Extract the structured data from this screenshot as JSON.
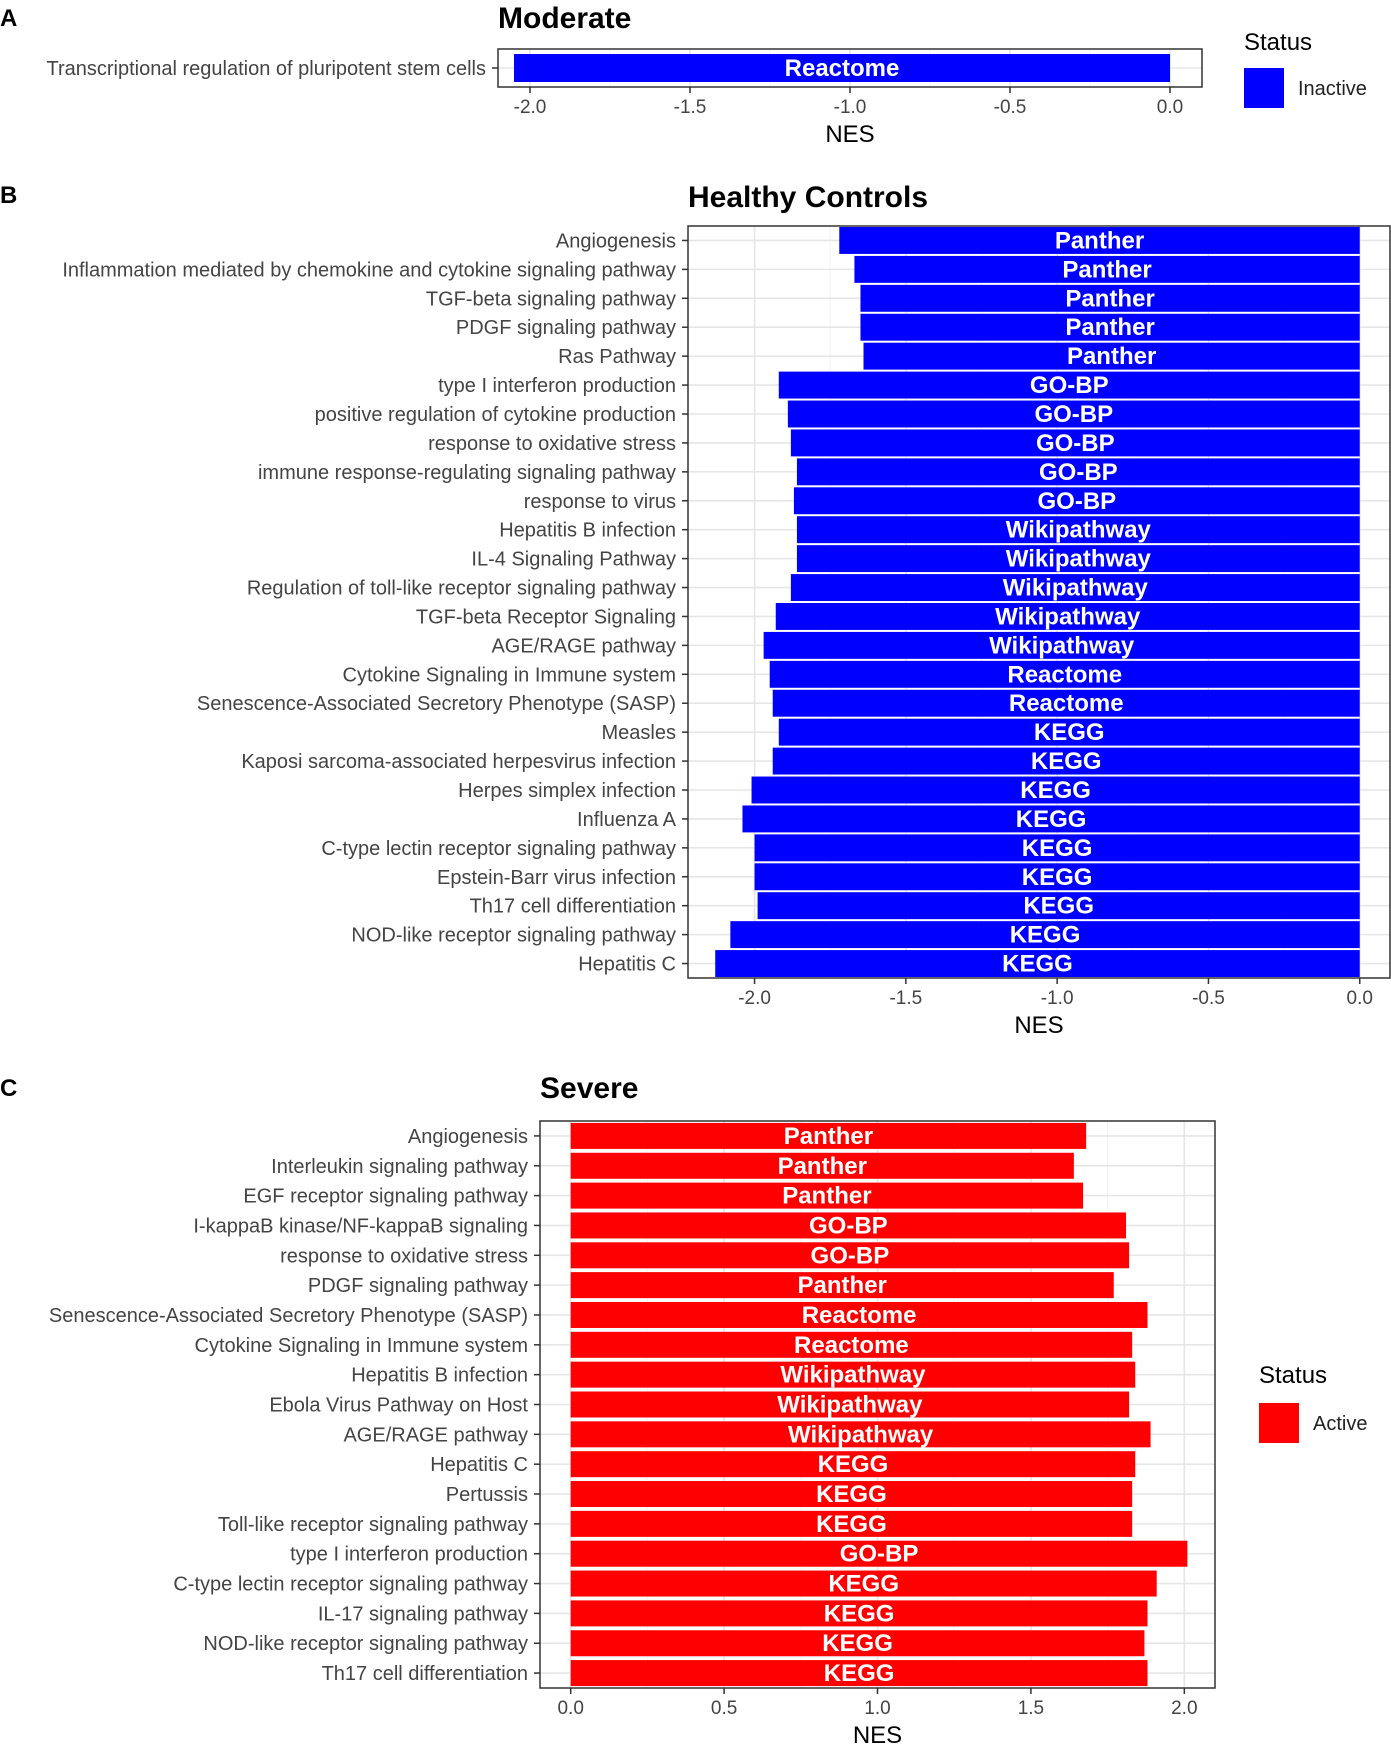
{
  "chart_data": [
    {
      "panel": "A",
      "type": "bar",
      "orientation": "horizontal",
      "title": "Moderate",
      "xlabel": "NES",
      "ylabel": "",
      "xlim": [
        -2.1,
        0.1
      ],
      "xticks": [
        -2.0,
        -1.5,
        -1.0,
        -0.5,
        0.0
      ],
      "xtick_labels": [
        "-2.0",
        "-1.5",
        "-1.0",
        "-0.5",
        "0.0"
      ],
      "grid": true,
      "color": "#0000ff",
      "legend": {
        "title": "Status",
        "entries": [
          {
            "label": "Inactive",
            "color": "#0000ff"
          }
        ]
      },
      "categories": [
        "Transcriptional regulation of pluripotent stem cells"
      ],
      "values": [
        -2.05
      ],
      "bar_labels": [
        "Reactome"
      ]
    },
    {
      "panel": "B",
      "type": "bar",
      "orientation": "horizontal",
      "title": "Healthy Controls",
      "xlabel": "NES",
      "ylabel": "",
      "xlim": [
        -2.22,
        0.1
      ],
      "xticks": [
        -2.0,
        -1.5,
        -1.0,
        -0.5,
        0.0
      ],
      "xtick_labels": [
        "-2.0",
        "-1.5",
        "-1.0",
        "-0.5",
        "0.0"
      ],
      "grid": true,
      "color": "#0000ff",
      "categories": [
        "Angiogenesis",
        "Inflammation mediated by chemokine and cytokine signaling pathway",
        "TGF-beta signaling pathway",
        "PDGF signaling pathway",
        "Ras Pathway",
        "type I interferon production",
        "positive regulation of cytokine production",
        "response to oxidative stress",
        "immune response-regulating signaling pathway",
        "response to virus",
        "Hepatitis B infection",
        "IL-4 Signaling Pathway",
        "Regulation of toll-like receptor signaling pathway",
        "TGF-beta Receptor Signaling",
        "AGE/RAGE pathway",
        "Cytokine Signaling in Immune system",
        "Senescence-Associated Secretory Phenotype (SASP)",
        "Measles",
        "Kaposi sarcoma-associated herpesvirus infection",
        "Herpes simplex infection",
        "Influenza A",
        "C-type lectin receptor signaling pathway",
        "Epstein-Barr virus infection",
        "Th17 cell differentiation",
        "NOD-like receptor signaling pathway",
        "Hepatitis C"
      ],
      "values": [
        -1.72,
        -1.67,
        -1.65,
        -1.65,
        -1.64,
        -1.92,
        -1.89,
        -1.88,
        -1.86,
        -1.87,
        -1.86,
        -1.86,
        -1.88,
        -1.93,
        -1.97,
        -1.95,
        -1.94,
        -1.92,
        -1.94,
        -2.01,
        -2.04,
        -2.0,
        -2.0,
        -1.99,
        -2.08,
        -2.13
      ],
      "bar_labels": [
        "Panther",
        "Panther",
        "Panther",
        "Panther",
        "Panther",
        "GO-BP",
        "GO-BP",
        "GO-BP",
        "GO-BP",
        "GO-BP",
        "Wikipathway",
        "Wikipathway",
        "Wikipathway",
        "Wikipathway",
        "Wikipathway",
        "Reactome",
        "Reactome",
        "KEGG",
        "KEGG",
        "KEGG",
        "KEGG",
        "KEGG",
        "KEGG",
        "KEGG",
        "KEGG",
        "KEGG"
      ]
    },
    {
      "panel": "C",
      "type": "bar",
      "orientation": "horizontal",
      "title": "Severe",
      "xlabel": "NES",
      "ylabel": "",
      "xlim": [
        -0.1,
        2.1
      ],
      "xticks": [
        0.0,
        0.5,
        1.0,
        1.5,
        2.0
      ],
      "xtick_labels": [
        "0.0",
        "0.5",
        "1.0",
        "1.5",
        "2.0"
      ],
      "grid": true,
      "color": "#ff0000",
      "legend": {
        "title": "Status",
        "entries": [
          {
            "label": "Active",
            "color": "#ff0000"
          }
        ]
      },
      "categories": [
        "Angiogenesis",
        "Interleukin signaling pathway",
        "EGF receptor signaling pathway",
        "I-kappaB kinase/NF-kappaB signaling",
        "response to oxidative stress",
        "PDGF signaling pathway",
        "Senescence-Associated Secretory Phenotype (SASP)",
        "Cytokine Signaling in Immune system",
        "Hepatitis B infection",
        "Ebola Virus Pathway on Host",
        "AGE/RAGE pathway",
        "Hepatitis C",
        "Pertussis",
        "Toll-like receptor signaling pathway",
        "type I interferon production",
        "C-type lectin receptor signaling pathway",
        "IL-17 signaling pathway",
        "NOD-like receptor signaling pathway",
        "Th17 cell differentiation"
      ],
      "values": [
        1.68,
        1.64,
        1.67,
        1.81,
        1.82,
        1.77,
        1.88,
        1.83,
        1.84,
        1.82,
        1.89,
        1.84,
        1.83,
        1.83,
        2.01,
        1.91,
        1.88,
        1.87,
        1.88
      ],
      "bar_labels": [
        "Panther",
        "Panther",
        "Panther",
        "GO-BP",
        "GO-BP",
        "Panther",
        "Reactome",
        "Reactome",
        "Wikipathway",
        "Wikipathway",
        "Wikipathway",
        "KEGG",
        "KEGG",
        "KEGG",
        "GO-BP",
        "KEGG",
        "KEGG",
        "KEGG",
        "KEGG"
      ]
    }
  ]
}
